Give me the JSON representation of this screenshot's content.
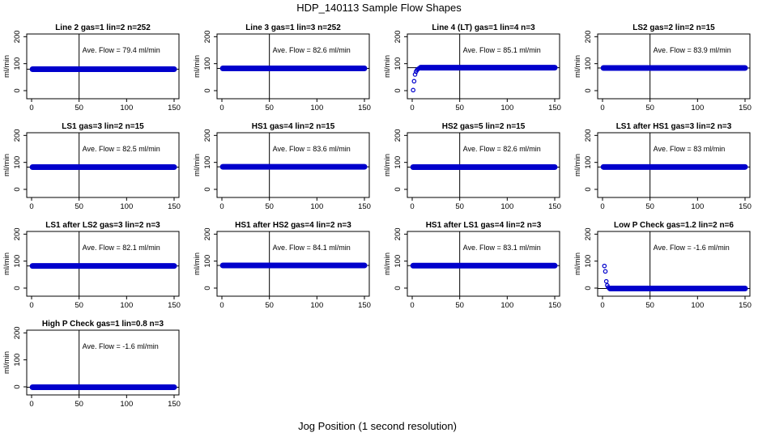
{
  "figure_title": "HDP_140113  Sample Flow Shapes",
  "xlabel": "Jog Position (1 second resolution)",
  "ylabel": "ml/min",
  "colors": {
    "points": "#0000cc",
    "lines": "#000000"
  },
  "chart_data": [
    {
      "type": "scatter",
      "title": "Line 2 gas=1 lin=2 n=252",
      "annotation": "Ave. Flow =  79.4  ml/min",
      "xlim": [
        0,
        150
      ],
      "ylim": [
        -30,
        210
      ],
      "x_ticks": [
        0,
        50,
        100,
        150
      ],
      "y_ticks": [
        0,
        100,
        200
      ],
      "vline": 50,
      "hline": 79.4,
      "series": [
        {
          "x_start": 1,
          "x_end": 150,
          "value": 79.4,
          "ramp": []
        }
      ]
    },
    {
      "type": "scatter",
      "title": "Line 3 gas=1 lin=3 n=252",
      "annotation": "Ave. Flow =  82.6  ml/min",
      "xlim": [
        0,
        150
      ],
      "ylim": [
        -30,
        210
      ],
      "x_ticks": [
        0,
        50,
        100,
        150
      ],
      "y_ticks": [
        0,
        100,
        200
      ],
      "vline": 50,
      "hline": 82.6,
      "series": [
        {
          "x_start": 1,
          "x_end": 150,
          "value": 82.6,
          "ramp": []
        }
      ]
    },
    {
      "type": "scatter",
      "title": "Line 4 (LT) gas=1 lin=4 n=3",
      "annotation": "Ave. Flow =  85.1  ml/min",
      "xlim": [
        0,
        150
      ],
      "ylim": [
        -30,
        210
      ],
      "x_ticks": [
        0,
        50,
        100,
        150
      ],
      "y_ticks": [
        0,
        100,
        200
      ],
      "vline": 50,
      "hline": 85.1,
      "series": [
        {
          "x_start": 9,
          "x_end": 150,
          "value": 85.1,
          "ramp": [
            [
              1,
              2
            ],
            [
              2,
              35
            ],
            [
              3,
              60
            ],
            [
              4,
              70
            ],
            [
              5,
              76
            ],
            [
              6,
              80
            ],
            [
              7,
              82
            ],
            [
              8,
              84
            ]
          ]
        }
      ]
    },
    {
      "type": "scatter",
      "title": "LS2 gas=2 lin=2 n=15",
      "annotation": "Ave. Flow =  83.9  ml/min",
      "xlim": [
        0,
        150
      ],
      "ylim": [
        -30,
        210
      ],
      "x_ticks": [
        0,
        50,
        100,
        150
      ],
      "y_ticks": [
        0,
        100,
        200
      ],
      "vline": 50,
      "hline": 83.9,
      "series": [
        {
          "x_start": 1,
          "x_end": 150,
          "value": 83.9,
          "ramp": []
        }
      ]
    },
    {
      "type": "scatter",
      "title": "LS1 gas=3 lin=2 n=15",
      "annotation": "Ave. Flow =  82.5  ml/min",
      "xlim": [
        0,
        150
      ],
      "ylim": [
        -30,
        210
      ],
      "x_ticks": [
        0,
        50,
        100,
        150
      ],
      "y_ticks": [
        0,
        100,
        200
      ],
      "vline": 50,
      "hline": 82.5,
      "series": [
        {
          "x_start": 1,
          "x_end": 150,
          "value": 82.5,
          "ramp": []
        }
      ]
    },
    {
      "type": "scatter",
      "title": "HS1 gas=4 lin=2 n=15",
      "annotation": "Ave. Flow =  83.6  ml/min",
      "xlim": [
        0,
        150
      ],
      "ylim": [
        -30,
        210
      ],
      "x_ticks": [
        0,
        50,
        100,
        150
      ],
      "y_ticks": [
        0,
        100,
        200
      ],
      "vline": 50,
      "hline": 83.6,
      "series": [
        {
          "x_start": 1,
          "x_end": 150,
          "value": 83.6,
          "ramp": []
        }
      ]
    },
    {
      "type": "scatter",
      "title": "HS2 gas=5 lin=2 n=15",
      "annotation": "Ave. Flow =  82.6  ml/min",
      "xlim": [
        0,
        150
      ],
      "ylim": [
        -30,
        210
      ],
      "x_ticks": [
        0,
        50,
        100,
        150
      ],
      "y_ticks": [
        0,
        100,
        200
      ],
      "vline": 50,
      "hline": 82.6,
      "series": [
        {
          "x_start": 1,
          "x_end": 150,
          "value": 82.6,
          "ramp": []
        }
      ]
    },
    {
      "type": "scatter",
      "title": "LS1 after HS1 gas=3 lin=2 n=3",
      "annotation": "Ave. Flow =  83  ml/min",
      "xlim": [
        0,
        150
      ],
      "ylim": [
        -30,
        210
      ],
      "x_ticks": [
        0,
        50,
        100,
        150
      ],
      "y_ticks": [
        0,
        100,
        200
      ],
      "vline": 50,
      "hline": 83,
      "series": [
        {
          "x_start": 1,
          "x_end": 150,
          "value": 83,
          "ramp": []
        }
      ]
    },
    {
      "type": "scatter",
      "title": "LS1 after LS2 gas=3 lin=2 n=3",
      "annotation": "Ave. Flow =  82.1  ml/min",
      "xlim": [
        0,
        150
      ],
      "ylim": [
        -30,
        210
      ],
      "x_ticks": [
        0,
        50,
        100,
        150
      ],
      "y_ticks": [
        0,
        100,
        200
      ],
      "vline": 50,
      "hline": 82.1,
      "series": [
        {
          "x_start": 1,
          "x_end": 150,
          "value": 82.1,
          "ramp": []
        }
      ]
    },
    {
      "type": "scatter",
      "title": "HS1 after HS2 gas=4 lin=2 n=3",
      "annotation": "Ave. Flow =  84.1  ml/min",
      "xlim": [
        0,
        150
      ],
      "ylim": [
        -30,
        210
      ],
      "x_ticks": [
        0,
        50,
        100,
        150
      ],
      "y_ticks": [
        0,
        100,
        200
      ],
      "vline": 50,
      "hline": 84.1,
      "series": [
        {
          "x_start": 1,
          "x_end": 150,
          "value": 84.1,
          "ramp": []
        }
      ]
    },
    {
      "type": "scatter",
      "title": "HS1 after LS1 gas=4 lin=2 n=3",
      "annotation": "Ave. Flow =  83.1  ml/min",
      "xlim": [
        0,
        150
      ],
      "ylim": [
        -30,
        210
      ],
      "x_ticks": [
        0,
        50,
        100,
        150
      ],
      "y_ticks": [
        0,
        100,
        200
      ],
      "vline": 50,
      "hline": 83.1,
      "series": [
        {
          "x_start": 1,
          "x_end": 150,
          "value": 83.1,
          "ramp": []
        }
      ]
    },
    {
      "type": "scatter",
      "title": "Low P Check gas=1.2 lin=2 n=6",
      "annotation": "Ave. Flow =  -1.6  ml/min",
      "xlim": [
        0,
        150
      ],
      "ylim": [
        -30,
        210
      ],
      "x_ticks": [
        0,
        50,
        100,
        150
      ],
      "y_ticks": [
        0,
        100,
        200
      ],
      "vline": 50,
      "hline": -1.6,
      "series": [
        {
          "x_start": 8,
          "x_end": 150,
          "value": -1.6,
          "ramp": [
            [
              2,
              82
            ],
            [
              3,
              62
            ],
            [
              4,
              25
            ],
            [
              5,
              10
            ],
            [
              6,
              3
            ],
            [
              7,
              0
            ]
          ]
        }
      ]
    },
    {
      "type": "scatter",
      "title": "High P Check gas=1 lin=0.8 n=3",
      "annotation": "Ave. Flow =  -1.6  ml/min",
      "xlim": [
        0,
        150
      ],
      "ylim": [
        -30,
        210
      ],
      "x_ticks": [
        0,
        50,
        100,
        150
      ],
      "y_ticks": [
        0,
        100,
        200
      ],
      "vline": 50,
      "hline": -1.6,
      "series": [
        {
          "x_start": 1,
          "x_end": 150,
          "value": -1.6,
          "ramp": []
        }
      ]
    }
  ]
}
